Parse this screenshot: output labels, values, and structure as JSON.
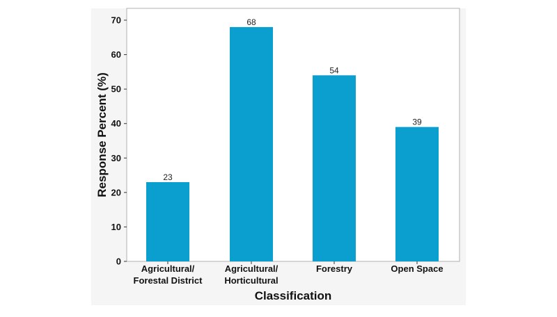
{
  "chart_data": {
    "type": "bar",
    "categories": [
      [
        "Agricultural/",
        "Forestal District"
      ],
      [
        "Agricultural/",
        "Horticultural"
      ],
      [
        "Forestry"
      ],
      [
        "Open Space"
      ]
    ],
    "values": [
      23,
      68,
      54,
      39
    ],
    "data_labels": [
      "23",
      "68",
      "54",
      "39"
    ],
    "title": "",
    "xlabel": "Classification",
    "ylabel": "Response Percent (%)",
    "ylim": [
      0,
      70
    ],
    "yticks": [
      0,
      10,
      20,
      30,
      40,
      50,
      60,
      70
    ],
    "grid": false,
    "legend": "none",
    "colors": {
      "bar": "#0b9fd0",
      "panel_background": "#f5f5f5",
      "plot_background": "#ffffff",
      "frame": "#b0b0b0"
    }
  }
}
